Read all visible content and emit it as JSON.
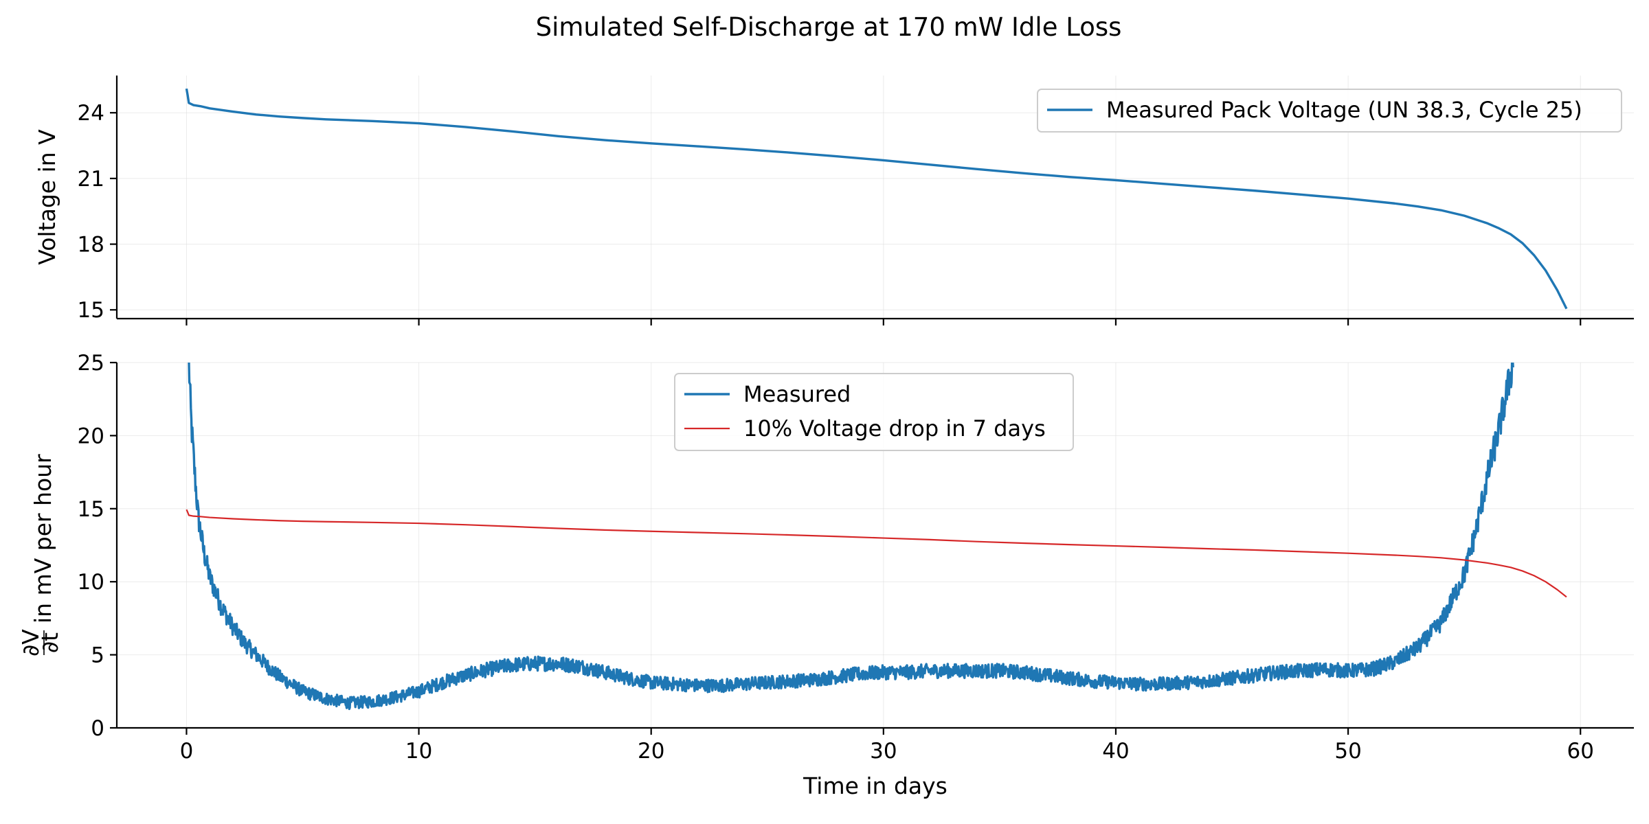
{
  "title": "Simulated Self-Discharge at 170 mW Idle Loss",
  "colors": {
    "measured": "#1f77b4",
    "reference": "#d62728"
  },
  "chart_data": [
    {
      "type": "line",
      "ylabel": "Voltage in V",
      "xlim": [
        -3,
        62.3
      ],
      "ylim": [
        14.6,
        25.7
      ],
      "xticks": [
        0,
        10,
        20,
        30,
        40,
        50,
        60
      ],
      "yticks": [
        15,
        18,
        21,
        24
      ],
      "ytick_labels": [
        "15",
        "18",
        "21",
        "24"
      ],
      "grid": true,
      "legend_position": "top-right",
      "series": [
        {
          "name": "Measured Pack Voltage (UN 38.3, Cycle 25)",
          "color": "#1f77b4",
          "x": [
            0,
            0.05,
            0.1,
            0.3,
            0.6,
            1,
            2,
            3,
            4,
            5,
            6,
            8,
            10,
            12,
            14,
            16,
            18,
            20,
            22,
            24,
            26,
            28,
            30,
            32,
            34,
            36,
            38,
            40,
            42,
            44,
            46,
            48,
            50,
            52,
            53,
            54,
            55,
            56,
            56.5,
            57,
            57.5,
            58,
            58.5,
            59,
            59.4
          ],
          "y": [
            25.1,
            24.8,
            24.45,
            24.35,
            24.3,
            24.2,
            24.05,
            23.92,
            23.83,
            23.76,
            23.7,
            23.62,
            23.52,
            23.35,
            23.15,
            22.93,
            22.75,
            22.6,
            22.47,
            22.33,
            22.18,
            22.01,
            21.83,
            21.63,
            21.43,
            21.24,
            21.07,
            20.92,
            20.76,
            20.6,
            20.44,
            20.26,
            20.08,
            19.86,
            19.72,
            19.55,
            19.3,
            18.95,
            18.72,
            18.45,
            18.05,
            17.5,
            16.8,
            15.9,
            15.05
          ]
        }
      ]
    },
    {
      "type": "line",
      "xlabel": "Time in days",
      "ylabel": "∂V/∂t in mV per hour",
      "ylabel_fraction": {
        "numerator": "∂V",
        "denominator": "∂t",
        "suffix": "in mV per hour"
      },
      "xlim": [
        -3,
        62.3
      ],
      "ylim": [
        0,
        25
      ],
      "xticks": [
        0,
        10,
        20,
        30,
        40,
        50,
        60
      ],
      "xtick_labels": [
        "0",
        "10",
        "20",
        "30",
        "40",
        "50",
        "60"
      ],
      "yticks": [
        0,
        5,
        10,
        15,
        20,
        25
      ],
      "ytick_labels": [
        "0",
        "5",
        "10",
        "15",
        "20",
        "25"
      ],
      "grid": true,
      "legend_position": "top-center",
      "series": [
        {
          "name": "Measured",
          "color": "#1f77b4",
          "noisy": true,
          "x": [
            0.1,
            0.2,
            0.35,
            0.5,
            0.75,
            1,
            1.5,
            2,
            2.5,
            3,
            3.5,
            4,
            5,
            6,
            7,
            8,
            9,
            10,
            11,
            12,
            13,
            14,
            15,
            16,
            17,
            18,
            19,
            20,
            21,
            22,
            23,
            24,
            25,
            26,
            27,
            28,
            29,
            30,
            31,
            32,
            33,
            34,
            35,
            36,
            37,
            38,
            39,
            40,
            41,
            42,
            43,
            44,
            45,
            46,
            47,
            48,
            49,
            50,
            51,
            52,
            53,
            54,
            55,
            55.5,
            56,
            56.5,
            57.1
          ],
          "y": [
            25,
            21,
            17.5,
            14.5,
            12,
            10.3,
            8.3,
            6.9,
            5.8,
            5.0,
            4.2,
            3.5,
            2.5,
            2.0,
            1.7,
            1.8,
            2.1,
            2.5,
            3.1,
            3.6,
            4.0,
            4.3,
            4.4,
            4.4,
            4.2,
            3.8,
            3.4,
            3.1,
            3.0,
            2.9,
            2.9,
            3.0,
            3.1,
            3.2,
            3.3,
            3.5,
            3.7,
            3.8,
            3.8,
            3.9,
            3.9,
            3.9,
            3.9,
            3.8,
            3.6,
            3.4,
            3.2,
            3.1,
            3.0,
            3.0,
            3.1,
            3.2,
            3.4,
            3.6,
            3.8,
            3.9,
            4.0,
            3.9,
            4.0,
            4.5,
            5.5,
            7.2,
            10.5,
            13.5,
            17.2,
            20.5,
            25
          ]
        },
        {
          "name": "10% Voltage drop in 7 days",
          "color": "#d62728",
          "x": [
            0,
            0.05,
            0.1,
            0.3,
            0.6,
            1,
            2,
            3,
            4,
            5,
            6,
            8,
            10,
            12,
            14,
            16,
            18,
            20,
            22,
            24,
            26,
            28,
            30,
            32,
            34,
            36,
            38,
            40,
            42,
            44,
            46,
            48,
            50,
            52,
            53,
            54,
            55,
            56,
            56.5,
            57,
            57.5,
            58,
            58.5,
            59,
            59.4
          ],
          "y": [
            14.94,
            14.76,
            14.55,
            14.49,
            14.46,
            14.4,
            14.31,
            14.24,
            14.18,
            14.14,
            14.11,
            14.06,
            14.0,
            13.9,
            13.78,
            13.65,
            13.54,
            13.45,
            13.37,
            13.29,
            13.2,
            13.1,
            12.99,
            12.88,
            12.75,
            12.64,
            12.54,
            12.45,
            12.36,
            12.26,
            12.17,
            12.06,
            11.95,
            11.82,
            11.74,
            11.64,
            11.49,
            11.28,
            11.14,
            10.98,
            10.74,
            10.42,
            10.0,
            9.46,
            8.96
          ]
        }
      ]
    }
  ]
}
